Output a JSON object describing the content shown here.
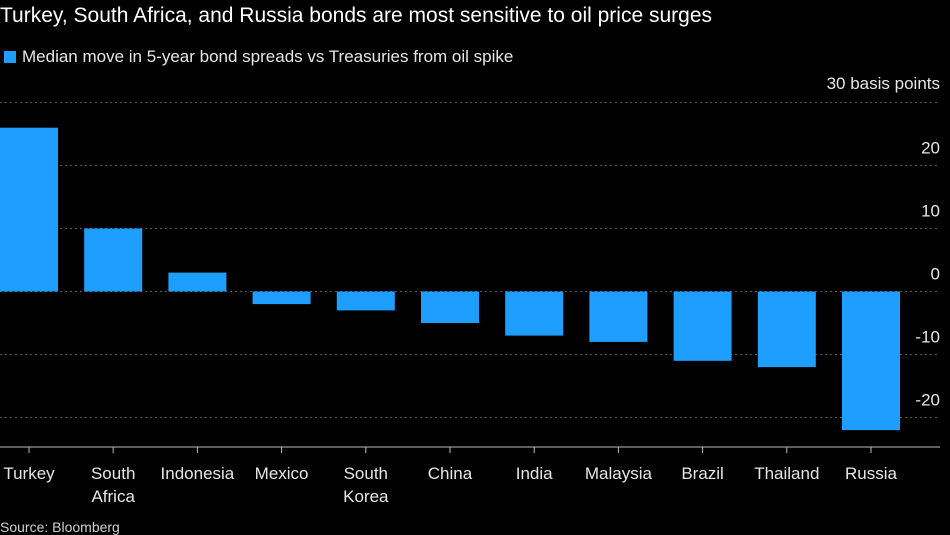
{
  "chart_data": {
    "type": "bar",
    "title": "Turkey, South Africa, and Russia bonds are most sensitive to oil price surges",
    "legend": [
      {
        "name": "Median move in 5-year bond spreads vs Treasuries from oil spike",
        "color": "#1e9fff"
      }
    ],
    "unit_label": "30 basis points",
    "categories": [
      [
        "Turkey"
      ],
      [
        "South",
        "Africa"
      ],
      [
        "Indonesia"
      ],
      [
        "Mexico"
      ],
      [
        "South",
        "Korea"
      ],
      [
        "China"
      ],
      [
        "India"
      ],
      [
        "Malaysia"
      ],
      [
        "Brazil"
      ],
      [
        "Thailand"
      ],
      [
        "Russia"
      ]
    ],
    "series": [
      {
        "name": "Median move in 5-year bond spreads vs Treasuries from oil spike",
        "values": [
          26,
          10,
          3,
          -2,
          -3,
          -5,
          -7,
          -8,
          -11,
          -12,
          -22
        ]
      }
    ],
    "yticks": [
      20,
      10,
      0,
      -10,
      -20
    ],
    "ylim": [
      -24,
      30
    ],
    "ylabel": "basis points",
    "bar_color": "#1e9fff",
    "source": "Source: Bloomberg"
  }
}
